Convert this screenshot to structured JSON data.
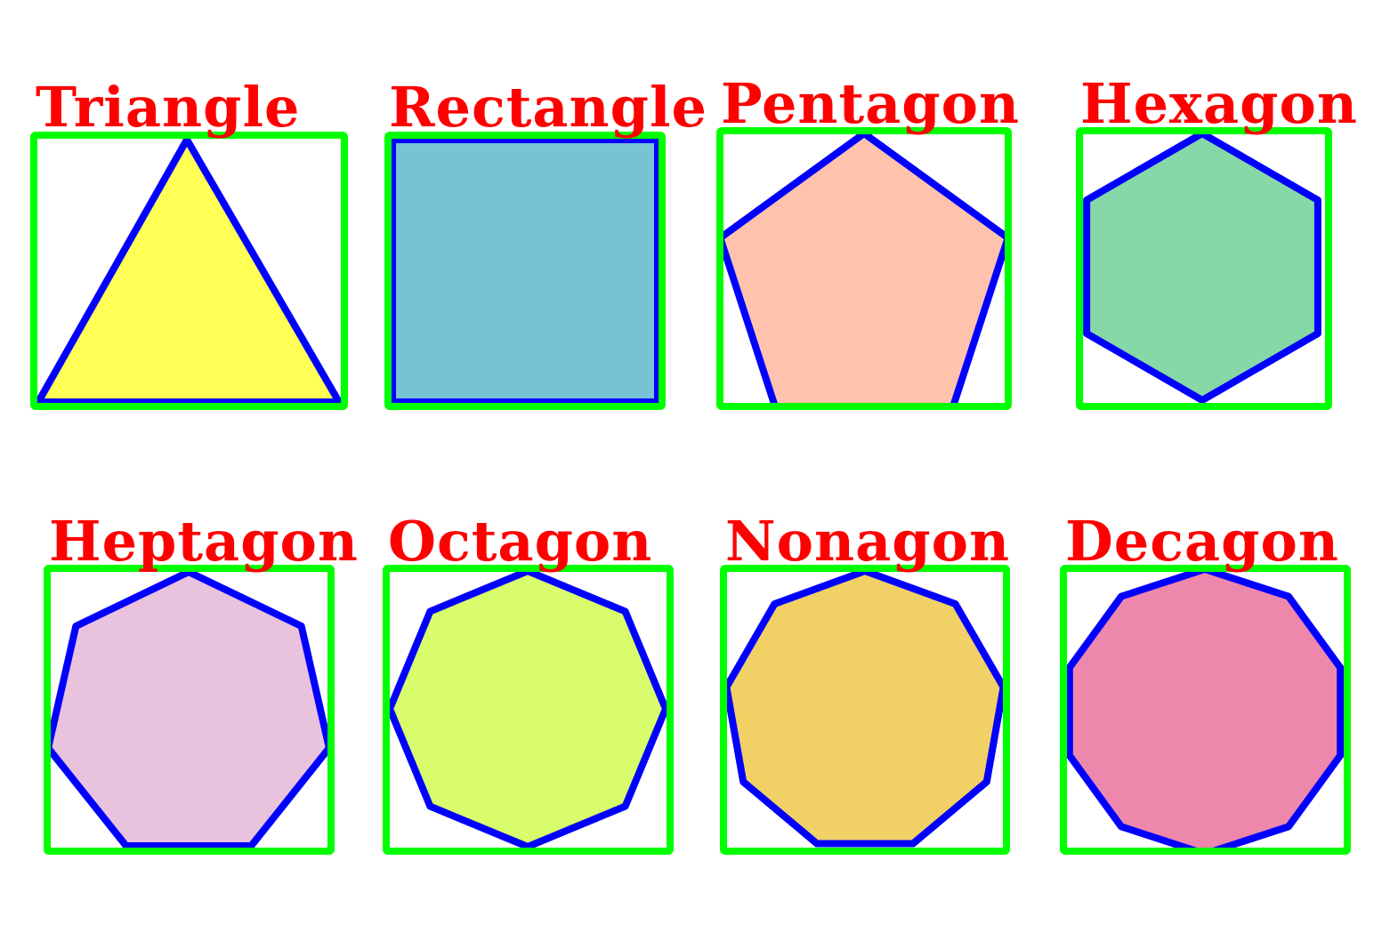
{
  "colors": {
    "background": "#ffffff",
    "label": "#ff0000",
    "bounding_box": "#00ff00",
    "outline": "#0000ff"
  },
  "shapes": [
    {
      "label": "Triangle",
      "sides": 3,
      "fill": "#ffff55",
      "icon": "triangle-icon"
    },
    {
      "label": "Rectangle",
      "sides": 4,
      "fill": "#77c2d3",
      "icon": "rectangle-icon"
    },
    {
      "label": "Pentagon",
      "sides": 5,
      "fill": "#ffc2ad",
      "icon": "pentagon-icon"
    },
    {
      "label": "Hexagon",
      "sides": 6,
      "fill": "#86d8a6",
      "icon": "hexagon-icon"
    },
    {
      "label": "Heptagon",
      "sides": 7,
      "fill": "#e9c2dd",
      "icon": "heptagon-icon"
    },
    {
      "label": "Octagon",
      "sides": 8,
      "fill": "#d9fc6c",
      "icon": "octagon-icon"
    },
    {
      "label": "Nonagon",
      "sides": 9,
      "fill": "#f1d066",
      "icon": "nonagon-icon"
    },
    {
      "label": "Decagon",
      "sides": 10,
      "fill": "#ed87ac",
      "icon": "decagon-icon"
    }
  ]
}
